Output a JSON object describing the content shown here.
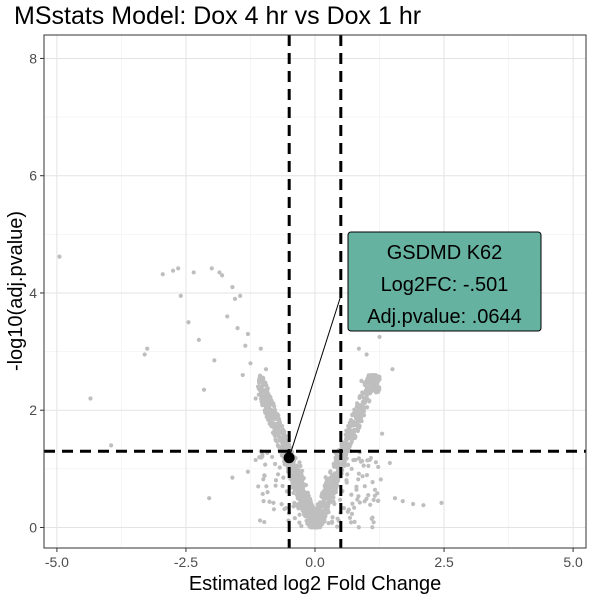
{
  "chart_data": {
    "type": "scatter",
    "title": "MSstats Model: Dox 4 hr vs Dox 1 hr",
    "xlabel": "Estimated log2 Fold Change",
    "ylabel": "-log10(adj.pvalue)",
    "xlim": [
      -5.25,
      5.25
    ],
    "ylim": [
      -0.35,
      8.4
    ],
    "x_ticks": [
      -5,
      -2.5,
      0,
      2.5,
      5
    ],
    "x_tick_labels": [
      "-5.0",
      "-2.5",
      "0.0",
      "2.5",
      "5.0"
    ],
    "y_ticks": [
      0,
      2,
      4,
      6,
      8
    ],
    "y_tick_labels": [
      "0",
      "2",
      "4",
      "6",
      "8"
    ],
    "grid": true,
    "thresholds": {
      "vertical": [
        -0.5,
        0.5
      ],
      "horizontal": 1.3
    },
    "colors": {
      "points": "#bebebe",
      "highlight": "#000000",
      "callout_fill": "#66b2a0",
      "threshold_line": "#000000"
    },
    "outliers": [
      {
        "x": -4.95,
        "y": 4.62
      },
      {
        "x": -4.35,
        "y": 2.2
      },
      {
        "x": -3.95,
        "y": 1.4
      },
      {
        "x": -3.3,
        "y": 2.95
      },
      {
        "x": -3.25,
        "y": 3.05
      },
      {
        "x": -2.95,
        "y": 4.32
      },
      {
        "x": -2.75,
        "y": 4.38
      },
      {
        "x": -2.65,
        "y": 4.42
      },
      {
        "x": -2.6,
        "y": 3.95
      },
      {
        "x": -2.45,
        "y": 3.5
      },
      {
        "x": -2.35,
        "y": 4.35
      },
      {
        "x": -2.25,
        "y": 3.2
      },
      {
        "x": -2.15,
        "y": 2.35
      },
      {
        "x": -2.0,
        "y": 4.42
      },
      {
        "x": -1.95,
        "y": 2.85
      },
      {
        "x": -1.85,
        "y": 4.35
      },
      {
        "x": -1.8,
        "y": 4.3
      },
      {
        "x": -1.7,
        "y": 3.6
      },
      {
        "x": -1.6,
        "y": 4.1
      },
      {
        "x": -1.55,
        "y": 3.9
      },
      {
        "x": -1.5,
        "y": 3.4
      },
      {
        "x": -1.45,
        "y": 3.95
      },
      {
        "x": -1.4,
        "y": 2.6
      },
      {
        "x": -1.35,
        "y": 3.1
      },
      {
        "x": -1.3,
        "y": 3.3
      },
      {
        "x": -1.25,
        "y": 2.8
      },
      {
        "x": -1.15,
        "y": 2.2
      },
      {
        "x": -1.05,
        "y": 3.05
      },
      {
        "x": -1.0,
        "y": 2.45
      },
      {
        "x": -0.95,
        "y": 2.7
      },
      {
        "x": -2.05,
        "y": 0.5
      },
      {
        "x": -1.6,
        "y": 0.85
      },
      {
        "x": -1.3,
        "y": 0.95
      },
      {
        "x": -1.15,
        "y": 1.15
      },
      {
        "x": -1.1,
        "y": 0.7
      },
      {
        "x": -1.05,
        "y": 1.3
      },
      {
        "x": 0.85,
        "y": 3.05
      },
      {
        "x": 0.9,
        "y": 2.5
      },
      {
        "x": 1.0,
        "y": 2.95
      },
      {
        "x": 1.05,
        "y": 2.15
      },
      {
        "x": 1.15,
        "y": 2.35
      },
      {
        "x": 1.25,
        "y": 3.25
      },
      {
        "x": 1.5,
        "y": 2.7
      },
      {
        "x": 1.3,
        "y": 1.6
      },
      {
        "x": 1.45,
        "y": 1.1
      },
      {
        "x": 1.55,
        "y": 0.5
      },
      {
        "x": 1.7,
        "y": 0.45
      },
      {
        "x": 1.9,
        "y": 0.4
      },
      {
        "x": 2.1,
        "y": 0.38
      },
      {
        "x": 2.45,
        "y": 0.42
      }
    ],
    "bulk_generator": {
      "count": 1500,
      "x_range": [
        -1.3,
        1.5
      ],
      "note_hidden": true
    },
    "highlight": {
      "x": -0.501,
      "y": 1.19
    },
    "callout": {
      "lines": [
        "GSDMD K62",
        "Log2FC: -.501",
        "Adj.pvalue: .0644"
      ],
      "anchor_x": 0.5,
      "anchor_y": 3.95
    }
  }
}
